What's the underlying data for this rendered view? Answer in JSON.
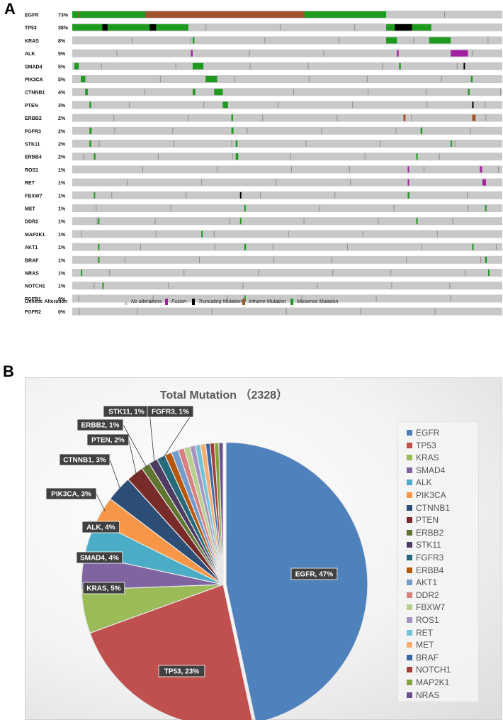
{
  "panel_a_label": "A",
  "panel_b_label": "B",
  "oncoprint": {
    "genes": [
      {
        "gene": "EGFR",
        "pct": "73%"
      },
      {
        "gene": "TP53",
        "pct": "38%"
      },
      {
        "gene": "KRAS",
        "pct": "8%"
      },
      {
        "gene": "ALK",
        "pct": "5%"
      },
      {
        "gene": "SMAD4",
        "pct": "5%"
      },
      {
        "gene": "PIK3CA",
        "pct": "5%"
      },
      {
        "gene": "CTNNB1",
        "pct": "4%"
      },
      {
        "gene": "PTEN",
        "pct": "3%"
      },
      {
        "gene": "ERBB2",
        "pct": "2%"
      },
      {
        "gene": "FGFR3",
        "pct": "2%"
      },
      {
        "gene": "STK11",
        "pct": "2%"
      },
      {
        "gene": "ERBB4",
        "pct": "2%"
      },
      {
        "gene": "ROS1",
        "pct": "1%"
      },
      {
        "gene": "RET",
        "pct": "1%"
      },
      {
        "gene": "FBXW7",
        "pct": "1%"
      },
      {
        "gene": "MET",
        "pct": "1%"
      },
      {
        "gene": "DDR2",
        "pct": "1%"
      },
      {
        "gene": "MAP2K1",
        "pct": "1%"
      },
      {
        "gene": "AKT1",
        "pct": "1%"
      },
      {
        "gene": "BRAF",
        "pct": "1%"
      },
      {
        "gene": "NRAS",
        "pct": "1%"
      },
      {
        "gene": "NOTCH1",
        "pct": "1%"
      },
      {
        "gene": "FGFR1",
        "pct": "0%"
      },
      {
        "gene": "FGFR2",
        "pct": "0%"
      }
    ],
    "legend_title": "Genetic Alteration",
    "legend": [
      {
        "label": "No alterations",
        "color": "#c8c8c8"
      },
      {
        "label": "Fusion",
        "color": "#a020a0"
      },
      {
        "label": "Truncating Mutation",
        "color": "#000000"
      },
      {
        "label": "Inframe Mutation",
        "color": "#a0522d"
      },
      {
        "label": "Missense Mutation",
        "color": "#1e9a1e"
      }
    ],
    "colors": {
      "bg": "#c8c8c8",
      "missense": "#1e9a1e",
      "inframe": "#a0522d",
      "fusion": "#a020a0",
      "truncating": "#000000"
    }
  },
  "chart_data": {
    "type": "pie",
    "title": "Total Mutation （2328）",
    "slices": [
      {
        "name": "EGFR",
        "value": 47,
        "color": "#4f81bd",
        "label": "EGFR, 47%"
      },
      {
        "name": "TP53",
        "value": 23,
        "color": "#c0504d",
        "label": "TP53, 23%"
      },
      {
        "name": "KRAS",
        "value": 5,
        "color": "#9bbb59",
        "label": "KRAS, 5%"
      },
      {
        "name": "SMAD4",
        "value": 4,
        "color": "#8064a2",
        "label": "SMAD4, 4%"
      },
      {
        "name": "ALK",
        "value": 4,
        "color": "#4bacc6",
        "label": "ALK, 4%"
      },
      {
        "name": "PIK3CA",
        "value": 3,
        "color": "#f79646",
        "label": "PIK3CA, 3%"
      },
      {
        "name": "CTNNB1",
        "value": 3,
        "color": "#2c4d75",
        "label": "CTNNB1, 3%"
      },
      {
        "name": "PTEN",
        "value": 2,
        "color": "#772c2a",
        "label": "PTEN, 2%"
      },
      {
        "name": "ERBB2",
        "value": 1,
        "color": "#5f7530",
        "label": "ERBB2, 1%"
      },
      {
        "name": "STK11",
        "value": 1,
        "color": "#4d3b62",
        "label": "STK11, 1%"
      },
      {
        "name": "FGFR3",
        "value": 1,
        "color": "#276a7c",
        "label": "FGFR3, 1%"
      },
      {
        "name": "ERBB4",
        "value": 0.8,
        "color": "#b65708",
        "label": ""
      },
      {
        "name": "AKT1",
        "value": 0.8,
        "color": "#729aca",
        "label": ""
      },
      {
        "name": "DDR2",
        "value": 0.7,
        "color": "#d9807e",
        "label": ""
      },
      {
        "name": "FBXW7",
        "value": 0.7,
        "color": "#b9d08c",
        "label": ""
      },
      {
        "name": "ROS1",
        "value": 0.6,
        "color": "#a593bf",
        "label": ""
      },
      {
        "name": "RET",
        "value": 0.6,
        "color": "#73c3d7",
        "label": ""
      },
      {
        "name": "MET",
        "value": 0.6,
        "color": "#f9ae6f",
        "label": ""
      },
      {
        "name": "BRAF",
        "value": 0.5,
        "color": "#3a6aa3",
        "label": ""
      },
      {
        "name": "NOTCH1",
        "value": 0.5,
        "color": "#a43e3b",
        "label": ""
      },
      {
        "name": "MAP2K1",
        "value": 0.5,
        "color": "#83a33f",
        "label": ""
      },
      {
        "name": "NRAS",
        "value": 0.5,
        "color": "#6a518c",
        "label": ""
      }
    ],
    "legend_position": "right"
  }
}
